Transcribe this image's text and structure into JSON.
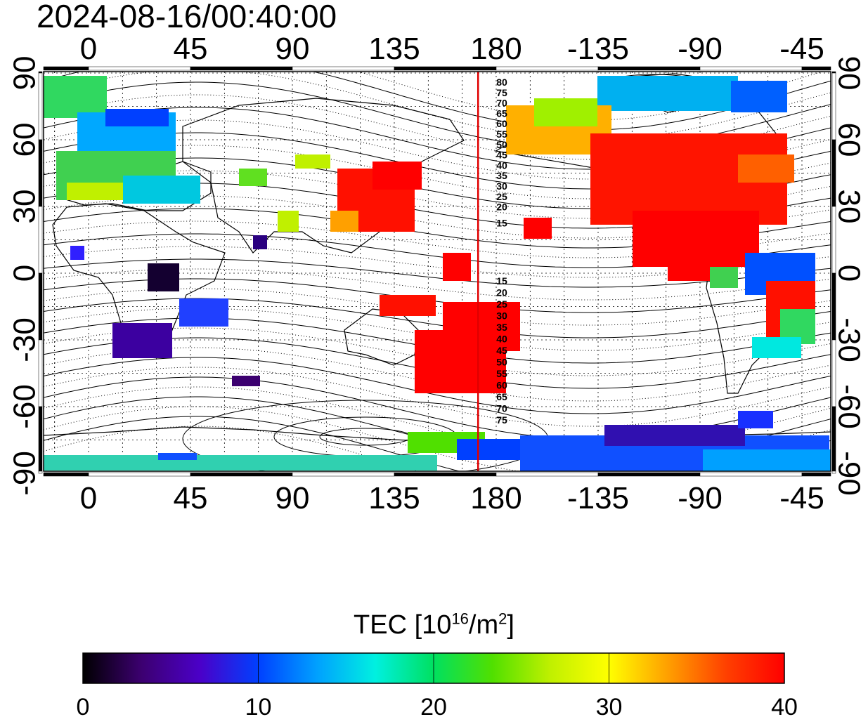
{
  "header": {
    "timestamp": "2024-08-16/00:40:00"
  },
  "map": {
    "lon_ticks": [
      "0",
      "45",
      "90",
      "135",
      "180",
      "-135",
      "-90",
      "-45"
    ],
    "lat_ticks": [
      "90",
      "60",
      "30",
      "0",
      "-30",
      "-60",
      "-90"
    ],
    "marker_longitude": 172,
    "contour_labels_north": [
      "80",
      "75",
      "70",
      "65",
      "60",
      "55",
      "50",
      "45",
      "40",
      "35",
      "30",
      "25",
      "20",
      "15"
    ],
    "contour_labels_south": [
      "15",
      "20",
      "25",
      "30",
      "35",
      "40",
      "45",
      "50",
      "55",
      "60",
      "65",
      "70",
      "75"
    ],
    "marker_color": "#e00000"
  },
  "colorbar": {
    "title_prefix": "TEC  [10",
    "title_exp": "16",
    "title_mid": "/m",
    "title_exp2": "2",
    "title_suffix": "]",
    "min": 0,
    "max": 40,
    "tick_labels": [
      "0",
      "10",
      "20",
      "30",
      "40"
    ],
    "colors": [
      "#000000",
      "#3c0070",
      "#4b00c8",
      "#0040ff",
      "#00a0ff",
      "#00f0e0",
      "#00e060",
      "#50e000",
      "#c0f000",
      "#ffff00",
      "#ffa000",
      "#ff4000",
      "#ff0000"
    ]
  }
}
